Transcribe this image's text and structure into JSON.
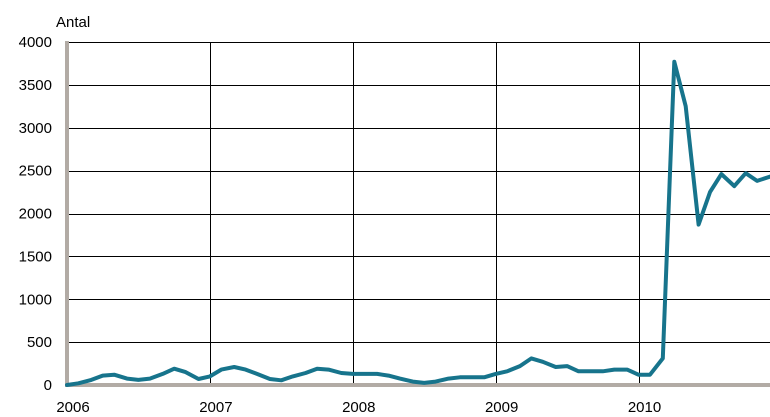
{
  "chart_data": {
    "type": "line",
    "title": "",
    "ylabel": "Antal",
    "xlabel": "",
    "ylim": [
      0,
      4000
    ],
    "xlim": [
      2006,
      2010.92
    ],
    "yticks": [
      0,
      500,
      1000,
      1500,
      2000,
      2500,
      3000,
      3500,
      4000
    ],
    "xticks": [
      2006,
      2007,
      2008,
      2009,
      2010
    ],
    "xtick_labels": [
      "2006",
      "2007",
      "2008",
      "2009",
      "2010"
    ],
    "ytick_labels": [
      "0",
      "500",
      "1000",
      "1500",
      "2000",
      "2500",
      "3000",
      "3500",
      "4000"
    ],
    "grid": "vertical at year marks and horizontal at each 500",
    "legend": "none",
    "series": [
      {
        "color": "#17748c",
        "x": [
          2006.0,
          2006.08,
          2006.17,
          2006.25,
          2006.33,
          2006.42,
          2006.5,
          2006.58,
          2006.67,
          2006.75,
          2006.83,
          2006.92,
          2007.0,
          2007.08,
          2007.17,
          2007.25,
          2007.33,
          2007.42,
          2007.5,
          2007.58,
          2007.67,
          2007.75,
          2007.83,
          2007.92,
          2008.0,
          2008.08,
          2008.17,
          2008.25,
          2008.33,
          2008.42,
          2008.5,
          2008.58,
          2008.67,
          2008.75,
          2008.83,
          2008.92,
          2009.0,
          2009.08,
          2009.17,
          2009.25,
          2009.33,
          2009.42,
          2009.5,
          2009.58,
          2009.67,
          2009.75,
          2009.83,
          2009.92,
          2010.0,
          2010.08,
          2010.17,
          2010.25,
          2010.33,
          2010.42,
          2010.5,
          2010.58,
          2010.67,
          2010.75,
          2010.83,
          2010.92
        ],
        "y": [
          0,
          20,
          60,
          110,
          120,
          75,
          60,
          75,
          130,
          190,
          150,
          70,
          100,
          180,
          210,
          180,
          130,
          70,
          55,
          100,
          140,
          190,
          180,
          140,
          130,
          130,
          130,
          110,
          75,
          40,
          25,
          40,
          75,
          90,
          90,
          90,
          130,
          160,
          220,
          310,
          270,
          210,
          220,
          160,
          160,
          160,
          180,
          180,
          120,
          120,
          310,
          3770,
          3250,
          1870,
          2250,
          2460,
          2320,
          2470,
          2380,
          2430
        ]
      }
    ]
  }
}
